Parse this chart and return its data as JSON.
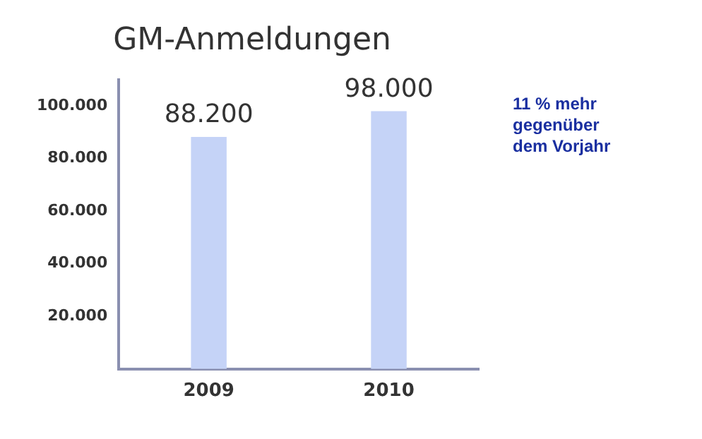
{
  "chart_data": {
    "type": "bar",
    "title": "GM-Anmeldungen",
    "categories": [
      "2009",
      "2010"
    ],
    "values": [
      88200,
      98000
    ],
    "value_labels": [
      "88.200",
      "98.000"
    ],
    "color": "#c5d3f7",
    "ylim": [
      0,
      110000
    ],
    "yticks": [
      {
        "value": 20000,
        "label": "20.000"
      },
      {
        "value": 40000,
        "label": "40.000"
      },
      {
        "value": 60000,
        "label": "60.000"
      },
      {
        "value": 80000,
        "label": "80.000"
      },
      {
        "value": 100000,
        "label": "100.000"
      }
    ],
    "grid": false,
    "legend": false,
    "annotations": [
      "11 % mehr gegenüber dem Vorjahr"
    ]
  }
}
